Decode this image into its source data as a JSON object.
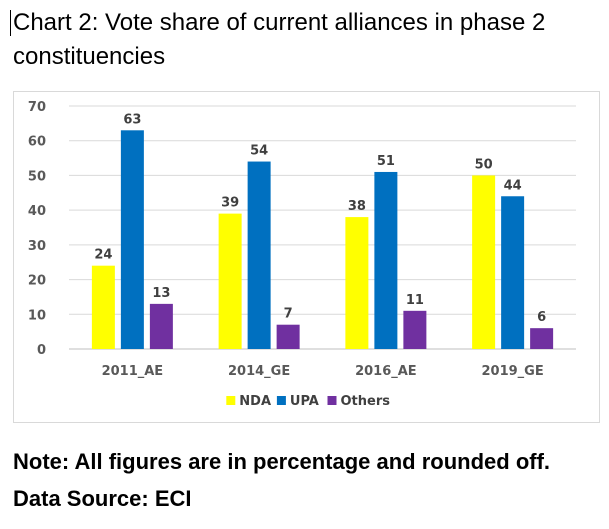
{
  "chart_data": {
    "type": "bar",
    "title": "Chart 2: Vote share of current alliances in phase 2 constituencies",
    "categories": [
      "2011_AE",
      "2014_GE",
      "2016_AE",
      "2019_GE"
    ],
    "series": [
      {
        "name": "NDA",
        "color": "#ffff00",
        "values": [
          24,
          39,
          38,
          50
        ]
      },
      {
        "name": "UPA",
        "color": "#0070c0",
        "values": [
          63,
          54,
          51,
          44
        ]
      },
      {
        "name": "Others",
        "color": "#7030a0",
        "values": [
          13,
          7,
          11,
          6
        ]
      }
    ],
    "ylim": [
      0,
      70
    ],
    "yticks": [
      0,
      10,
      20,
      30,
      40,
      50,
      60,
      70
    ],
    "grid": true,
    "legend_position": "bottom",
    "xlabel": "",
    "ylabel": ""
  },
  "note": "Note: All figures are in percentage and rounded off.",
  "source": "Data Source: ECI"
}
